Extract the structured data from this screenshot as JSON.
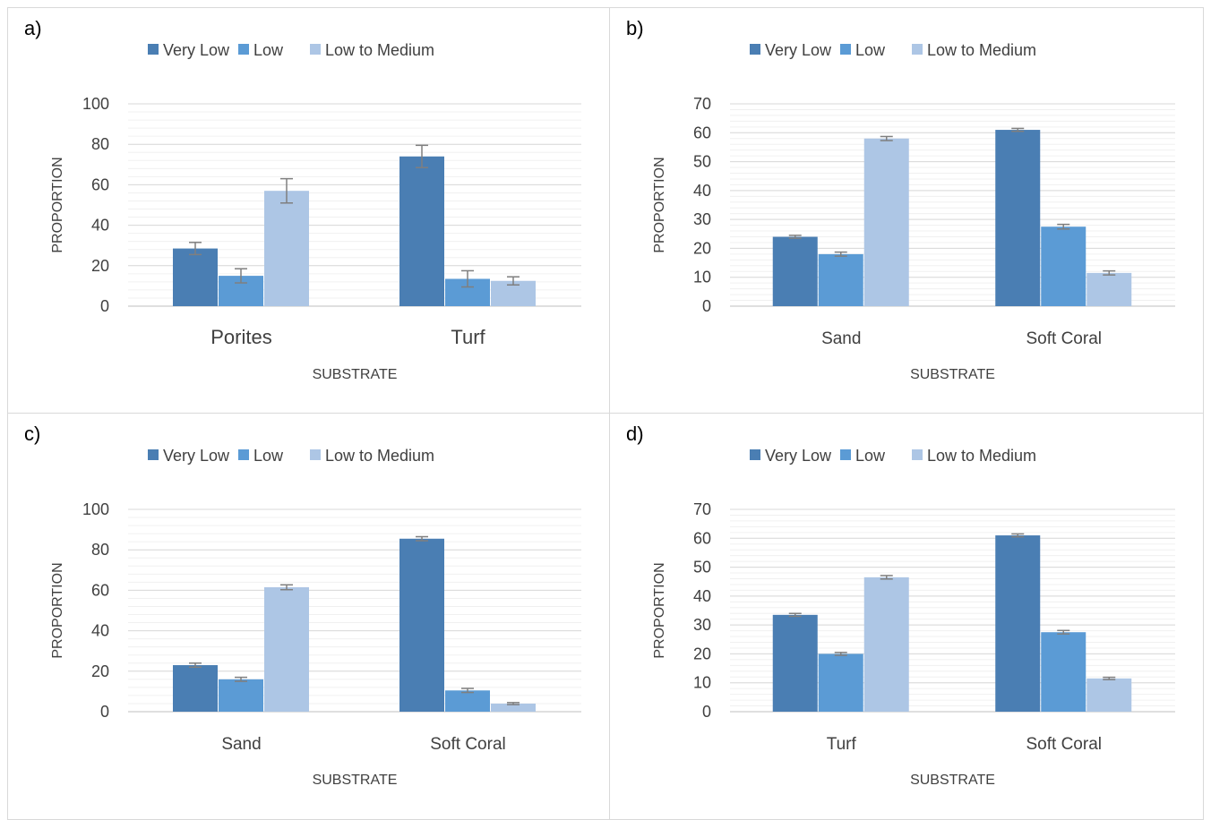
{
  "legend": {
    "entries": [
      "Very Low",
      "Low",
      "Low to Medium"
    ],
    "colors": [
      "#4a7eb3",
      "#5b9bd5",
      "#adc6e5"
    ]
  },
  "chart_data": [
    {
      "panel_label": "a)",
      "type": "bar",
      "categories": [
        "Porites",
        "Turf"
      ],
      "series": [
        {
          "name": "Very Low",
          "values": [
            28.5,
            74
          ],
          "errors": [
            3,
            5.5
          ]
        },
        {
          "name": "Low",
          "values": [
            15,
            13.5
          ],
          "errors": [
            3.5,
            4
          ]
        },
        {
          "name": "Low to Medium",
          "values": [
            57,
            12.5
          ],
          "errors": [
            6,
            2
          ]
        }
      ],
      "xlabel": "SUBSTRATE",
      "ylabel": "PROPORTION",
      "ylim": [
        0,
        100
      ],
      "yticks": [
        0,
        20,
        40,
        60,
        80,
        100
      ],
      "minor_step": 4,
      "grid": true,
      "legend_position": "top"
    },
    {
      "panel_label": "b)",
      "type": "bar",
      "categories": [
        "Sand",
        "Soft Coral"
      ],
      "series": [
        {
          "name": "Very Low",
          "values": [
            24,
            61
          ],
          "errors": [
            0.5,
            0.5
          ]
        },
        {
          "name": "Low",
          "values": [
            18,
            27.5
          ],
          "errors": [
            0.7,
            0.8
          ]
        },
        {
          "name": "Low to Medium",
          "values": [
            58,
            11.5
          ],
          "errors": [
            0.7,
            0.7
          ]
        }
      ],
      "xlabel": "SUBSTRATE",
      "ylabel": "PROPORTION",
      "ylim": [
        0,
        70
      ],
      "yticks": [
        0,
        10,
        20,
        30,
        40,
        50,
        60,
        70
      ],
      "minor_step": 2,
      "grid": true,
      "legend_position": "top"
    },
    {
      "panel_label": "c)",
      "type": "bar",
      "categories": [
        "Sand",
        "Soft Coral"
      ],
      "series": [
        {
          "name": "Very Low",
          "values": [
            23,
            85.5
          ],
          "errors": [
            1,
            1
          ]
        },
        {
          "name": "Low",
          "values": [
            16,
            10.5
          ],
          "errors": [
            1,
            1
          ]
        },
        {
          "name": "Low to Medium",
          "values": [
            61.5,
            4
          ],
          "errors": [
            1.2,
            0.5
          ]
        }
      ],
      "xlabel": "SUBSTRATE",
      "ylabel": "PROPORTION",
      "ylim": [
        0,
        100
      ],
      "yticks": [
        0,
        20,
        40,
        60,
        80,
        100
      ],
      "minor_step": 4,
      "grid": true,
      "legend_position": "top"
    },
    {
      "panel_label": "d)",
      "type": "bar",
      "categories": [
        "Turf",
        "Soft Coral"
      ],
      "series": [
        {
          "name": "Very Low",
          "values": [
            33.5,
            61
          ],
          "errors": [
            0.5,
            0.5
          ]
        },
        {
          "name": "Low",
          "values": [
            20,
            27.5
          ],
          "errors": [
            0.5,
            0.6
          ]
        },
        {
          "name": "Low to Medium",
          "values": [
            46.5,
            11.5
          ],
          "errors": [
            0.6,
            0.4
          ]
        }
      ],
      "xlabel": "SUBSTRATE",
      "ylabel": "PROPORTION",
      "ylim": [
        0,
        70
      ],
      "yticks": [
        0,
        10,
        20,
        30,
        40,
        50,
        60,
        70
      ],
      "minor_step": 2,
      "grid": true,
      "legend_position": "top"
    }
  ]
}
